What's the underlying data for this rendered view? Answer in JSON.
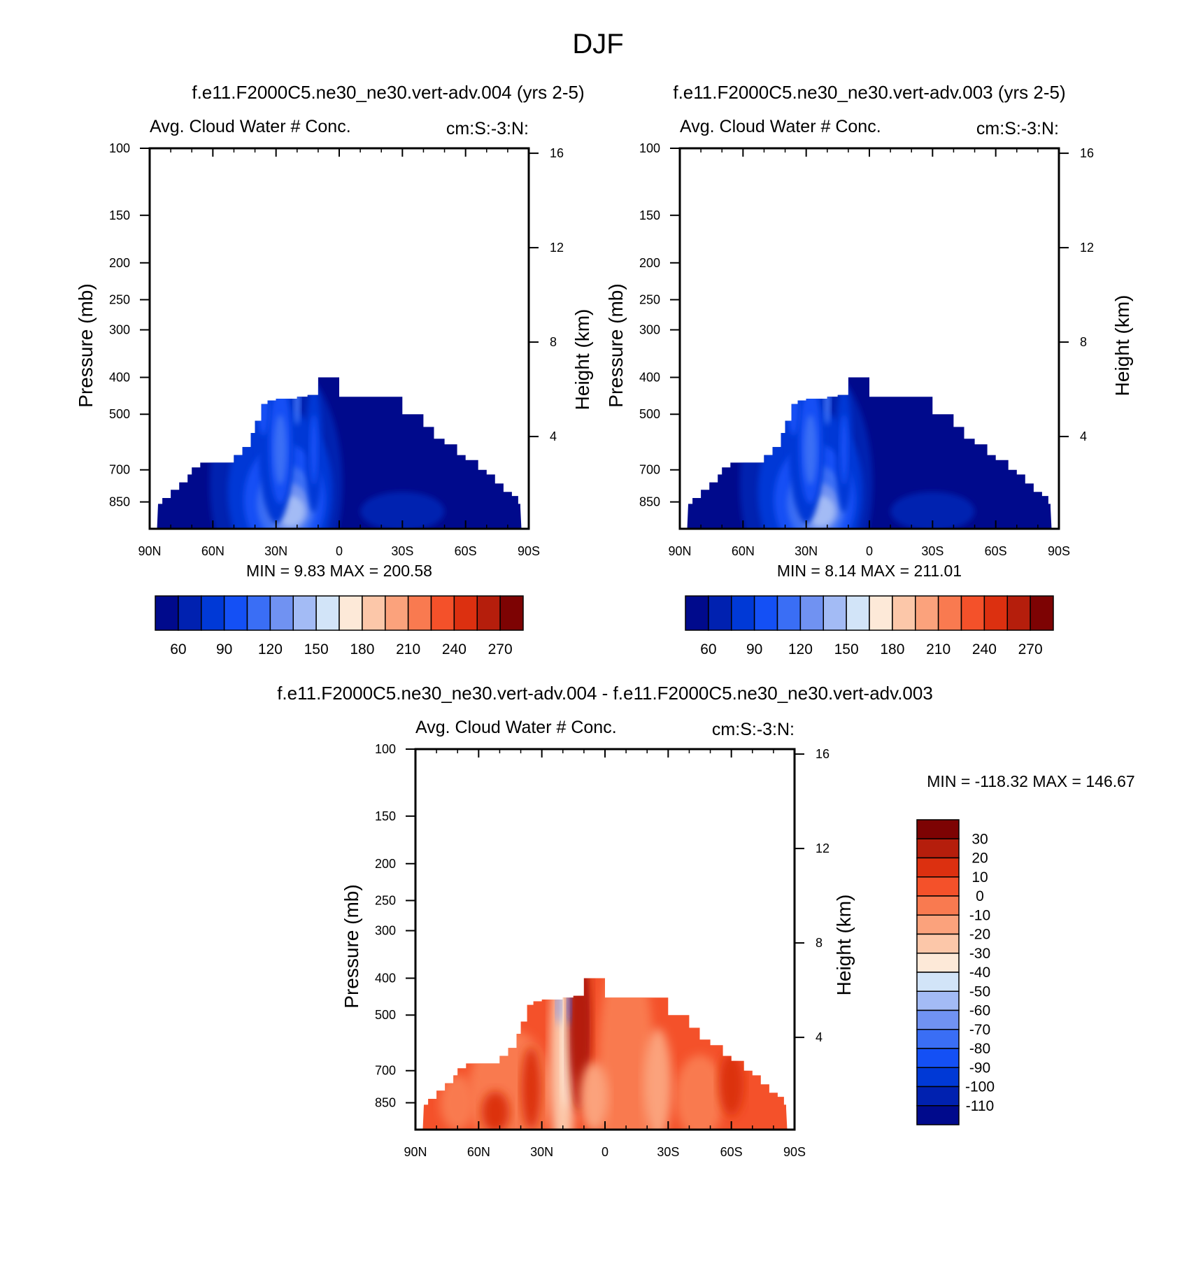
{
  "page_title": "DJF",
  "colors": {
    "blue_scale": [
      "#000a8c",
      "#0021b0",
      "#0039d6",
      "#1450f5",
      "#3a6ef5",
      "#7092f2",
      "#a3bbf5",
      "#d2e4f8",
      "#fde9d8",
      "#fcc7a9",
      "#fba27c",
      "#f97a50",
      "#f4512a",
      "#dc3010",
      "#b51e0c",
      "#7d0303"
    ],
    "diff_scale": [
      "#7d0303",
      "#b51e0c",
      "#dc3010",
      "#f4512a",
      "#f97a50",
      "#fba27c",
      "#fcc7a9",
      "#fde9d8",
      "#d2e4f8",
      "#a3bbf5",
      "#7092f2",
      "#3a6ef5",
      "#1450f5",
      "#0039d6",
      "#0021b0",
      "#000a8c"
    ]
  },
  "chart_data": [
    {
      "type": "heatmap",
      "id": "panel-004",
      "title": "f.e11.F2000C5.ne30_ne30.vert-adv.004 (yrs 2-5)",
      "subtitle_left": "Avg. Cloud Water # Conc.",
      "subtitle_right": "cm:S:-3:N:",
      "ylabel": "Pressure (mb)",
      "ylabel_right": "Height (km)",
      "x_ticks": [
        "90N",
        "60N",
        "30N",
        "0",
        "30S",
        "60S",
        "90S"
      ],
      "x_tick_values": [
        90,
        60,
        30,
        0,
        -30,
        -60,
        -90
      ],
      "y_ticks": [
        "100",
        "150",
        "200",
        "250",
        "300",
        "400",
        "500",
        "700",
        "850"
      ],
      "y_tick_values": [
        100,
        150,
        200,
        250,
        300,
        400,
        500,
        700,
        850
      ],
      "right_ticks": [
        "16",
        "12",
        "8",
        "4"
      ],
      "right_tick_values": [
        16,
        12,
        8,
        4
      ],
      "ylim": [
        100,
        1000
      ],
      "log_y": true,
      "min_label": "MIN =   9.83  MAX = 200.58",
      "min": 9.83,
      "max": 200.58,
      "colorbar_labels": [
        "60",
        "90",
        "120",
        "150",
        "180",
        "210",
        "240",
        "270"
      ],
      "colorbar_orientation": "horizontal",
      "scheme": "blue"
    },
    {
      "type": "heatmap",
      "id": "panel-003",
      "title": "f.e11.F2000C5.ne30_ne30.vert-adv.003 (yrs 2-5)",
      "subtitle_left": "Avg. Cloud Water # Conc.",
      "subtitle_right": "cm:S:-3:N:",
      "ylabel": "Pressure (mb)",
      "ylabel_right": "Height (km)",
      "x_ticks": [
        "90N",
        "60N",
        "30N",
        "0",
        "30S",
        "60S",
        "90S"
      ],
      "x_tick_values": [
        90,
        60,
        30,
        0,
        -30,
        -60,
        -90
      ],
      "y_ticks": [
        "100",
        "150",
        "200",
        "250",
        "300",
        "400",
        "500",
        "700",
        "850"
      ],
      "y_tick_values": [
        100,
        150,
        200,
        250,
        300,
        400,
        500,
        700,
        850
      ],
      "right_ticks": [
        "16",
        "12",
        "8",
        "4"
      ],
      "right_tick_values": [
        16,
        12,
        8,
        4
      ],
      "ylim": [
        100,
        1000
      ],
      "log_y": true,
      "min_label": "MIN =   8.14  MAX = 211.01",
      "min": 8.14,
      "max": 211.01,
      "colorbar_labels": [
        "60",
        "90",
        "120",
        "150",
        "180",
        "210",
        "240",
        "270"
      ],
      "colorbar_orientation": "horizontal",
      "scheme": "blue"
    },
    {
      "type": "heatmap",
      "id": "panel-diff",
      "title": "f.e11.F2000C5.ne30_ne30.vert-adv.004 - f.e11.F2000C5.ne30_ne30.vert-adv.003",
      "subtitle_left": "Avg. Cloud Water # Conc.",
      "subtitle_right": "cm:S:-3:N:",
      "ylabel": "Pressure (mb)",
      "ylabel_right": "Height (km)",
      "x_ticks": [
        "90N",
        "60N",
        "30N",
        "0",
        "30S",
        "60S",
        "90S"
      ],
      "x_tick_values": [
        90,
        60,
        30,
        0,
        -30,
        -60,
        -90
      ],
      "y_ticks": [
        "100",
        "150",
        "200",
        "250",
        "300",
        "400",
        "500",
        "700",
        "850"
      ],
      "y_tick_values": [
        100,
        150,
        200,
        250,
        300,
        400,
        500,
        700,
        850
      ],
      "right_ticks": [
        "16",
        "12",
        "8",
        "4"
      ],
      "right_tick_values": [
        16,
        12,
        8,
        4
      ],
      "ylim": [
        100,
        1000
      ],
      "log_y": true,
      "min_label": "MIN = -118.32  MAX = 146.67",
      "min": -118.32,
      "max": 146.67,
      "colorbar_labels": [
        "30",
        "20",
        "10",
        "0",
        "-10",
        "-20",
        "-30",
        "-40",
        "-50",
        "-60",
        "-70",
        "-80",
        "-90",
        "-100",
        "-110"
      ],
      "colorbar_orientation": "vertical",
      "scheme": "diff"
    }
  ]
}
